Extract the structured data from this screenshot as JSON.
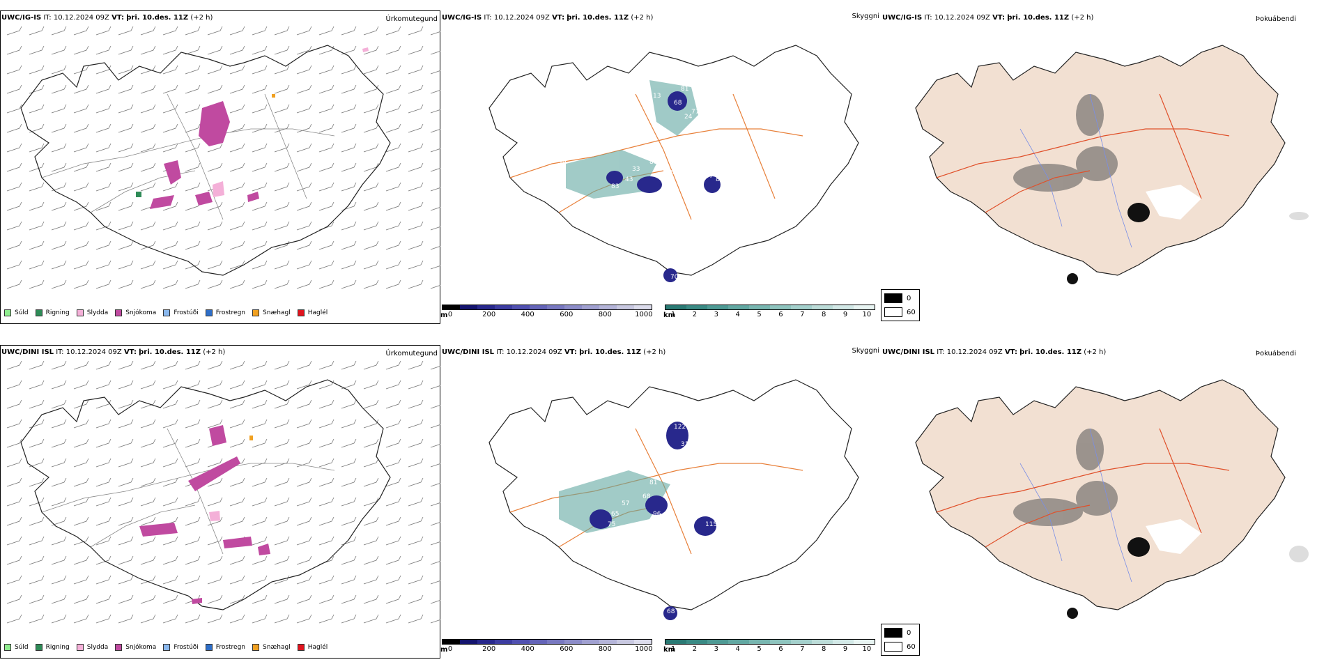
{
  "rows": [
    {
      "model": "UWC/IG-IS",
      "it_label": "IT:",
      "it_value": "10.12.2024 09Z",
      "vt_label": "VT:",
      "vt_value": "þri. 10.des. 11Z",
      "lead": "(+2 h)",
      "titles": {
        "precip": "Úrkomutegund",
        "cloud": "Skyggni",
        "fog": "Þokuábendi"
      }
    },
    {
      "model": "UWC/DINI ISL",
      "it_label": "IT:",
      "it_value": "10.12.2024 09Z",
      "vt_label": "VT:",
      "vt_value": "þri. 10.des. 11Z",
      "lead": "(+2 h)",
      "titles": {
        "precip": "Úrkomutegund",
        "cloud": "Skyggni",
        "fog": "Þokuábendi"
      }
    }
  ],
  "precip_legend": [
    {
      "label": "Súld",
      "color": "#90ee90"
    },
    {
      "label": "Rigning",
      "color": "#2e8b57"
    },
    {
      "label": "Slydda",
      "color": "#f4b0d8"
    },
    {
      "label": "Snjókoma",
      "color": "#c04aa0"
    },
    {
      "label": "Frostúði",
      "color": "#8ab8ee"
    },
    {
      "label": "Frostregn",
      "color": "#2e6ec8"
    },
    {
      "label": "Snæhagl",
      "color": "#f0a020"
    },
    {
      "label": "Haglél",
      "color": "#e0141e"
    }
  ],
  "ceiling_bar": {
    "unit": "m",
    "ticks": [
      "0",
      "200",
      "400",
      "600",
      "800",
      "1000"
    ],
    "colors": [
      "#000000",
      "#14146e",
      "#28288c",
      "#3c3ca0",
      "#5050b0",
      "#6464b8",
      "#7878c0",
      "#8c8cc8",
      "#a0a0d0",
      "#b4b4d8",
      "#c8c8e0",
      "#dcdcec"
    ]
  },
  "vis_bar": {
    "unit": "km",
    "ticks": [
      "1",
      "2",
      "3",
      "4",
      "5",
      "6",
      "7",
      "8",
      "9",
      "10"
    ],
    "colors": [
      "#2a7a74",
      "#3a8a84",
      "#4e9a94",
      "#62a8a2",
      "#78b6b0",
      "#8ec4be",
      "#a4d0cc",
      "#bcdcd8",
      "#d2e8e6",
      "#e8f4f2"
    ]
  },
  "fog_legend": {
    "dark_label": "0",
    "light_label": "60"
  },
  "cloud_labels": {
    "row0": [
      "81",
      "68",
      "77",
      "24",
      "135",
      "13",
      "46",
      "14",
      "80",
      "62",
      "33",
      "43",
      "83",
      "104",
      "37",
      "80",
      "70"
    ],
    "row1": [
      "10",
      "122",
      "123",
      "31",
      "81",
      "68",
      "57",
      "65",
      "75",
      "96",
      "61",
      "87",
      "115",
      "33",
      "68"
    ]
  },
  "colors": {
    "roads": "#e8803a",
    "fog_land": "#f2e0d2",
    "fog_roads": "#e0502a",
    "rivers": "#7a8ee6"
  }
}
